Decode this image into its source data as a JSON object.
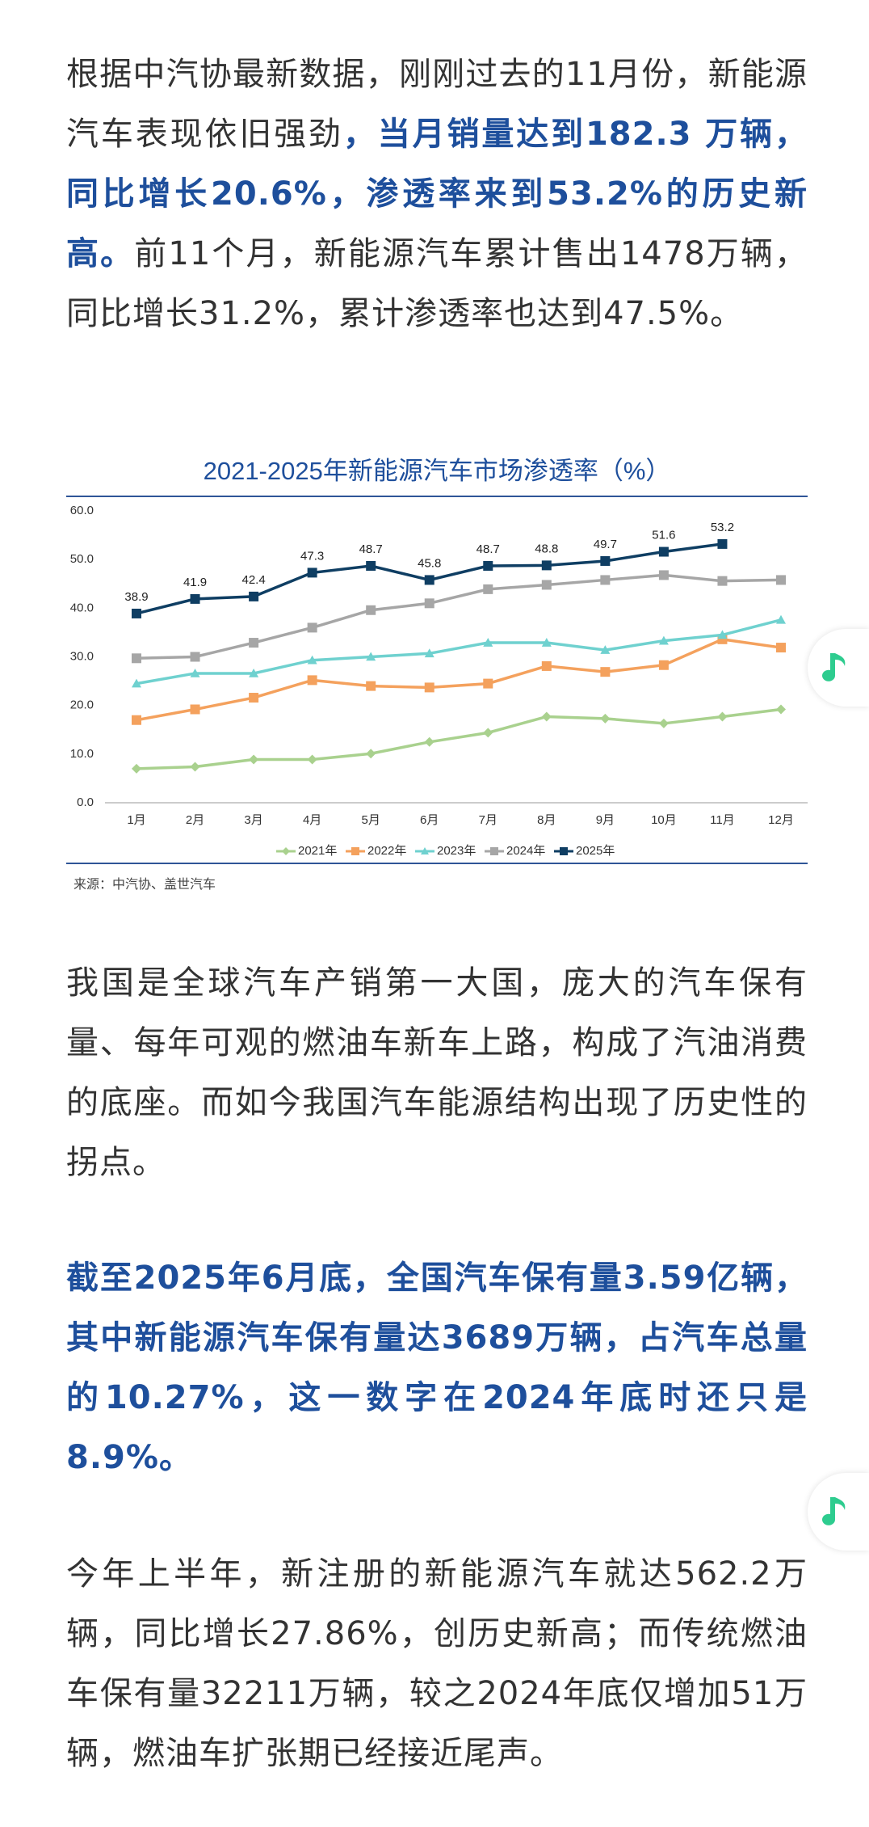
{
  "paragraphs": [
    {
      "segments": [
        {
          "text": "根据中汽协最新数据，刚刚过去的11月份，新能源汽车表现依旧强劲",
          "bold": false
        },
        {
          "text": "，当月销量达到182.3 万辆，同比增长20.6%，渗透率来到53.2%的历史新高。",
          "bold": true
        },
        {
          "text": "前11个月，新能源汽车累计售出1478万辆，同比增长31.2%，累计渗透率也达到47.5%。",
          "bold": false
        }
      ]
    },
    {
      "segments": [
        {
          "text": "我国是全球汽车产销第一大国，庞大的汽车保有量、每年可观的燃油车新车上路，构成了汽油消费的底座。而如今我国汽车能源结构出现了历史性的拐点。",
          "bold": false
        }
      ]
    },
    {
      "segments": [
        {
          "text": "截至2025年6月底，全国汽车保有量3.59亿辆，其中新能源汽车保有量达3689万辆，占汽车总量的10.27%，这一数字在2024年底时还只是8.9%。",
          "bold": true
        }
      ]
    },
    {
      "segments": [
        {
          "text": "今年上半年，新注册的新能源汽车就达562.2万辆，同比增长27.86%，创历史新高；而传统燃油车保有量32211万辆，较之2024年底仅增加51万辆，燃油车扩张期已经接近尾声。",
          "bold": false
        }
      ]
    }
  ],
  "chart_data": {
    "type": "line",
    "title": "2021-2025年新能源汽车市场渗透率（%）",
    "source": "来源：中汽协、盖世汽车",
    "categories": [
      "1月",
      "2月",
      "3月",
      "4月",
      "5月",
      "6月",
      "7月",
      "8月",
      "9月",
      "10月",
      "11月",
      "12月"
    ],
    "ylim": [
      0,
      60
    ],
    "yticks": [
      {
        "value": 0,
        "label": "0.0"
      },
      {
        "value": 10,
        "label": "10.0"
      },
      {
        "value": 20,
        "label": "20.0"
      },
      {
        "value": 30,
        "label": "30.0"
      },
      {
        "value": 40,
        "label": "40.0"
      },
      {
        "value": 50,
        "label": "50.0"
      },
      {
        "value": 60,
        "label": "60.0"
      }
    ],
    "grid": false,
    "series": [
      {
        "name": "2021年",
        "color": "#a9d18e",
        "marker": "diamond",
        "values": [
          7.0,
          7.4,
          8.9,
          8.9,
          10.1,
          12.5,
          14.4,
          17.7,
          17.3,
          16.3,
          17.7,
          19.2
        ]
      },
      {
        "name": "2022年",
        "color": "#f4a15d",
        "marker": "square",
        "values": [
          17.0,
          19.2,
          21.6,
          25.2,
          24.0,
          23.7,
          24.5,
          28.1,
          26.9,
          28.3,
          33.6,
          31.9
        ]
      },
      {
        "name": "2023年",
        "color": "#6fd1cf",
        "marker": "triangle",
        "values": [
          24.5,
          26.6,
          26.6,
          29.3,
          30.0,
          30.7,
          32.9,
          32.9,
          31.4,
          33.3,
          34.5,
          37.6
        ]
      },
      {
        "name": "2024年",
        "color": "#a6a6a6",
        "marker": "square",
        "values": [
          29.7,
          30.0,
          32.9,
          36.0,
          39.6,
          41.0,
          43.9,
          44.8,
          45.8,
          46.8,
          45.6,
          45.8
        ]
      },
      {
        "name": "2025年",
        "color": "#0f3e63",
        "marker": "square",
        "labels": true,
        "values": [
          38.9,
          41.9,
          42.4,
          47.3,
          48.7,
          45.8,
          48.7,
          48.8,
          49.7,
          51.6,
          53.2,
          null
        ]
      }
    ]
  }
}
